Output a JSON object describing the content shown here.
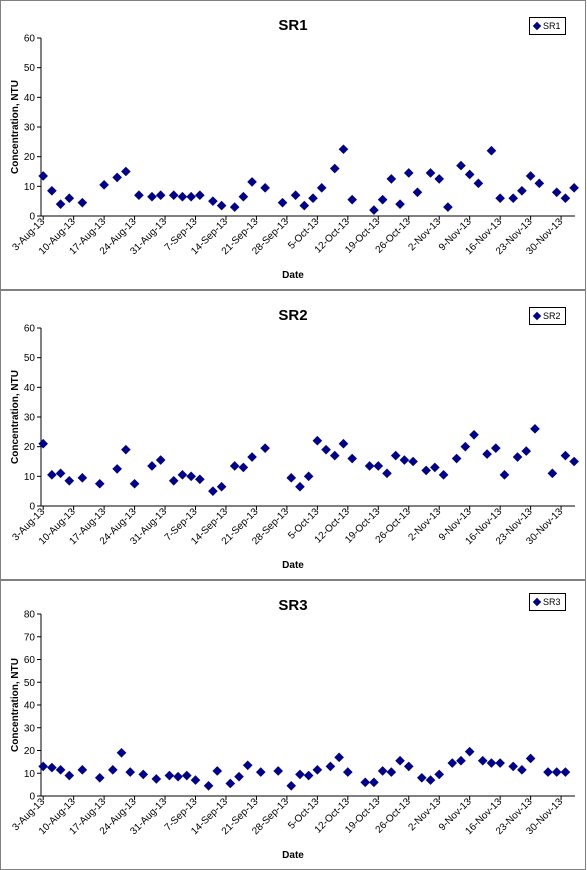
{
  "chart_data": [
    {
      "type": "scatter",
      "title": "SR1",
      "xlabel": "Date",
      "ylabel": "Concentration, NTU",
      "ylim": [
        0,
        60
      ],
      "yticks": [
        "0",
        "10",
        "20",
        "30",
        "40",
        "50",
        "60"
      ],
      "xticks": [
        "3-Aug-13",
        "10-Aug-13",
        "17-Aug-13",
        "24-Aug-13",
        "31-Aug-13",
        "7-Sep-13",
        "14-Sep-13",
        "21-Sep-13",
        "28-Sep-13",
        "5-Oct-13",
        "12-Oct-13",
        "19-Oct-13",
        "26-Oct-13",
        "2-Nov-13",
        "9-Nov-13",
        "16-Nov-13",
        "23-Nov-13",
        "30-Nov-13"
      ],
      "legend_position": "top-right",
      "marker_color": "#00008B",
      "series": [
        {
          "name": "SR1",
          "points": [
            [
              "2013-08-03",
              13.5
            ],
            [
              "2013-08-05",
              8.5
            ],
            [
              "2013-08-07",
              4
            ],
            [
              "2013-08-09",
              6
            ],
            [
              "2013-08-12",
              4.5
            ],
            [
              "2013-08-17",
              10.5
            ],
            [
              "2013-08-20",
              13
            ],
            [
              "2013-08-22",
              15
            ],
            [
              "2013-08-25",
              7
            ],
            [
              "2013-08-28",
              6.5
            ],
            [
              "2013-08-30",
              7
            ],
            [
              "2013-09-02",
              7
            ],
            [
              "2013-09-04",
              6.5
            ],
            [
              "2013-09-06",
              6.5
            ],
            [
              "2013-09-08",
              7
            ],
            [
              "2013-09-11",
              5
            ],
            [
              "2013-09-13",
              3.5
            ],
            [
              "2013-09-16",
              3
            ],
            [
              "2013-09-18",
              6.5
            ],
            [
              "2013-09-20",
              11.5
            ],
            [
              "2013-09-23",
              9.5
            ],
            [
              "2013-09-27",
              4.5
            ],
            [
              "2013-09-30",
              7
            ],
            [
              "2013-10-02",
              3.5
            ],
            [
              "2013-10-04",
              6
            ],
            [
              "2013-10-06",
              9.5
            ],
            [
              "2013-10-09",
              16
            ],
            [
              "2013-10-11",
              22.5
            ],
            [
              "2013-10-13",
              5.5
            ],
            [
              "2013-10-18",
              2
            ],
            [
              "2013-10-20",
              5.5
            ],
            [
              "2013-10-22",
              12.5
            ],
            [
              "2013-10-24",
              4
            ],
            [
              "2013-10-26",
              14.5
            ],
            [
              "2013-10-28",
              8
            ],
            [
              "2013-10-31",
              14.5
            ],
            [
              "2013-11-02",
              12.5
            ],
            [
              "2013-11-04",
              3
            ],
            [
              "2013-11-07",
              17
            ],
            [
              "2013-11-09",
              14
            ],
            [
              "2013-11-11",
              11
            ],
            [
              "2013-11-14",
              22
            ],
            [
              "2013-11-16",
              6
            ],
            [
              "2013-11-19",
              6
            ],
            [
              "2013-11-21",
              8.5
            ],
            [
              "2013-11-23",
              13.5
            ],
            [
              "2013-11-25",
              11
            ],
            [
              "2013-11-29",
              8
            ],
            [
              "2013-12-01",
              6
            ],
            [
              "2013-12-03",
              9.5
            ]
          ]
        }
      ]
    },
    {
      "type": "scatter",
      "title": "SR2",
      "xlabel": "Date",
      "ylabel": "Concentration, NTU",
      "ylim": [
        0,
        60
      ],
      "yticks": [
        "0",
        "10",
        "20",
        "30",
        "40",
        "50",
        "60"
      ],
      "xticks": [
        "3-Aug-13",
        "10-Aug-13",
        "17-Aug-13",
        "24-Aug-13",
        "31-Aug-13",
        "7-Sep-13",
        "14-Sep-13",
        "21-Sep-13",
        "28-Sep-13",
        "5-Oct-13",
        "12-Oct-13",
        "19-Oct-13",
        "26-Oct-13",
        "2-Nov-13",
        "9-Nov-13",
        "16-Nov-13",
        "23-Nov-13",
        "30-Nov-13"
      ],
      "legend_position": "top-right",
      "marker_color": "#00008B",
      "series": [
        {
          "name": "SR2",
          "points": [
            [
              "2013-08-03",
              21
            ],
            [
              "2013-08-05",
              10.5
            ],
            [
              "2013-08-07",
              11
            ],
            [
              "2013-08-09",
              8.5
            ],
            [
              "2013-08-12",
              9.5
            ],
            [
              "2013-08-16",
              7.5
            ],
            [
              "2013-08-20",
              12.5
            ],
            [
              "2013-08-22",
              19
            ],
            [
              "2013-08-24",
              7.5
            ],
            [
              "2013-08-28",
              13.5
            ],
            [
              "2013-08-30",
              15.5
            ],
            [
              "2013-09-02",
              8.5
            ],
            [
              "2013-09-04",
              10.5
            ],
            [
              "2013-09-06",
              10
            ],
            [
              "2013-09-08",
              9
            ],
            [
              "2013-09-11",
              5
            ],
            [
              "2013-09-13",
              6.5
            ],
            [
              "2013-09-16",
              13.5
            ],
            [
              "2013-09-18",
              13
            ],
            [
              "2013-09-20",
              16.5
            ],
            [
              "2013-09-23",
              19.5
            ],
            [
              "2013-09-29",
              9.5
            ],
            [
              "2013-10-01",
              6.5
            ],
            [
              "2013-10-03",
              10
            ],
            [
              "2013-10-05",
              22
            ],
            [
              "2013-10-07",
              19
            ],
            [
              "2013-10-09",
              17
            ],
            [
              "2013-10-11",
              21
            ],
            [
              "2013-10-13",
              16
            ],
            [
              "2013-10-17",
              13.5
            ],
            [
              "2013-10-19",
              13.5
            ],
            [
              "2013-10-21",
              11
            ],
            [
              "2013-10-23",
              17
            ],
            [
              "2013-10-25",
              15.5
            ],
            [
              "2013-10-27",
              15
            ],
            [
              "2013-10-30",
              12
            ],
            [
              "2013-11-01",
              13
            ],
            [
              "2013-11-03",
              10.5
            ],
            [
              "2013-11-06",
              16
            ],
            [
              "2013-11-08",
              20
            ],
            [
              "2013-11-10",
              24
            ],
            [
              "2013-11-13",
              17.5
            ],
            [
              "2013-11-15",
              19.5
            ],
            [
              "2013-11-17",
              10.5
            ],
            [
              "2013-11-20",
              16.5
            ],
            [
              "2013-11-22",
              18.5
            ],
            [
              "2013-11-24",
              26
            ],
            [
              "2013-11-28",
              11
            ],
            [
              "2013-12-01",
              17
            ],
            [
              "2013-12-03",
              15
            ]
          ]
        }
      ]
    },
    {
      "type": "scatter",
      "title": "SR3",
      "xlabel": "Date",
      "ylabel": "Concentration, NTU",
      "ylim": [
        0,
        80
      ],
      "yticks": [
        "0",
        "10",
        "20",
        "30",
        "40",
        "50",
        "60",
        "70",
        "80"
      ],
      "xticks": [
        "3-Aug-13",
        "10-Aug-13",
        "17-Aug-13",
        "24-Aug-13",
        "31-Aug-13",
        "7-Sep-13",
        "14-Sep-13",
        "21-Sep-13",
        "28-Sep-13",
        "5-Oct-13",
        "12-Oct-13",
        "19-Oct-13",
        "26-Oct-13",
        "2-Nov-13",
        "9-Nov-13",
        "16-Nov-13",
        "23-Nov-13",
        "30-Nov-13"
      ],
      "legend_position": "top-right",
      "marker_color": "#00008B",
      "series": [
        {
          "name": "SR3",
          "points": [
            [
              "2013-08-03",
              13
            ],
            [
              "2013-08-05",
              12.5
            ],
            [
              "2013-08-07",
              11.5
            ],
            [
              "2013-08-09",
              9
            ],
            [
              "2013-08-12",
              11.5
            ],
            [
              "2013-08-16",
              8
            ],
            [
              "2013-08-19",
              11.5
            ],
            [
              "2013-08-21",
              19
            ],
            [
              "2013-08-23",
              10.5
            ],
            [
              "2013-08-26",
              9.5
            ],
            [
              "2013-08-29",
              7.5
            ],
            [
              "2013-09-01",
              9
            ],
            [
              "2013-09-03",
              8.5
            ],
            [
              "2013-09-05",
              9
            ],
            [
              "2013-09-07",
              7
            ],
            [
              "2013-09-10",
              4.5
            ],
            [
              "2013-09-12",
              11
            ],
            [
              "2013-09-15",
              5.5
            ],
            [
              "2013-09-17",
              8.5
            ],
            [
              "2013-09-19",
              13.5
            ],
            [
              "2013-09-22",
              10.5
            ],
            [
              "2013-09-26",
              11
            ],
            [
              "2013-09-29",
              4.5
            ],
            [
              "2013-10-01",
              9.5
            ],
            [
              "2013-10-03",
              9
            ],
            [
              "2013-10-05",
              11.5
            ],
            [
              "2013-10-08",
              13
            ],
            [
              "2013-10-10",
              17
            ],
            [
              "2013-10-12",
              10.5
            ],
            [
              "2013-10-16",
              6
            ],
            [
              "2013-10-18",
              6
            ],
            [
              "2013-10-20",
              11
            ],
            [
              "2013-10-22",
              10.5
            ],
            [
              "2013-10-24",
              15.5
            ],
            [
              "2013-10-26",
              13
            ],
            [
              "2013-10-29",
              8
            ],
            [
              "2013-10-31",
              7
            ],
            [
              "2013-11-02",
              9.5
            ],
            [
              "2013-11-05",
              14.5
            ],
            [
              "2013-11-07",
              15.5
            ],
            [
              "2013-11-09",
              19.5
            ],
            [
              "2013-11-12",
              15.5
            ],
            [
              "2013-11-14",
              14.5
            ],
            [
              "2013-11-16",
              14.5
            ],
            [
              "2013-11-19",
              13
            ],
            [
              "2013-11-21",
              11.5
            ],
            [
              "2013-11-23",
              16.5
            ],
            [
              "2013-11-27",
              10.5
            ],
            [
              "2013-11-29",
              10.5
            ],
            [
              "2013-12-01",
              10.5
            ]
          ]
        }
      ]
    }
  ]
}
